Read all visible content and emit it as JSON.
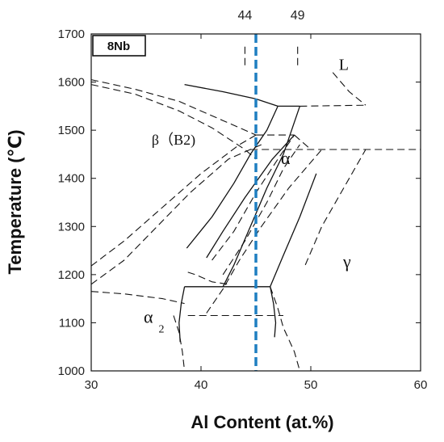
{
  "chart_data": {
    "type": "line",
    "title": "",
    "xlabel": "Al Content (at.%)",
    "ylabel": "Temperature (℃)",
    "xlim": [
      30,
      60
    ],
    "ylim": [
      1000,
      1700
    ],
    "xticks": [
      30,
      40,
      50,
      60
    ],
    "yticks": [
      1000,
      1100,
      1200,
      1300,
      1400,
      1500,
      1600,
      1700
    ],
    "top_ticks": [
      "44",
      "49"
    ],
    "sample_label": "8Nb",
    "marker_line": {
      "x": 45,
      "color": "#1f7fc1",
      "style": "dashed"
    },
    "phase_labels": [
      {
        "text": "L",
        "x": 53.0,
        "y": 1625
      },
      {
        "text": "β（B2)",
        "x": 37.5,
        "y": 1470
      },
      {
        "text": "α",
        "x": 47.7,
        "y": 1430
      },
      {
        "text": "γ",
        "x": 53.3,
        "y": 1215
      },
      {
        "text": "α",
        "x": 35.2,
        "y": 1100
      },
      {
        "text": "2",
        "x": 36.4,
        "y": 1080
      }
    ],
    "series": [
      {
        "style": "solid",
        "points": [
          [
            38.5,
            1595
          ],
          [
            42,
            1580
          ],
          [
            45,
            1565
          ],
          [
            47,
            1550
          ]
        ]
      },
      {
        "style": "solid",
        "points": [
          [
            47,
            1550
          ],
          [
            49,
            1550
          ]
        ]
      },
      {
        "style": "solid",
        "points": [
          [
            38.7,
            1255
          ],
          [
            41,
            1320
          ],
          [
            43,
            1390
          ],
          [
            44.5,
            1450
          ],
          [
            46,
            1500
          ],
          [
            47,
            1550
          ]
        ]
      },
      {
        "style": "solid",
        "points": [
          [
            42,
            1175
          ],
          [
            43,
            1220
          ],
          [
            44.5,
            1300
          ],
          [
            46,
            1380
          ],
          [
            47.5,
            1450
          ],
          [
            49,
            1550
          ]
        ]
      },
      {
        "style": "solid",
        "points": [
          [
            40.5,
            1235
          ],
          [
            42,
            1290
          ],
          [
            44,
            1360
          ],
          [
            46.5,
            1440
          ],
          [
            48.5,
            1490
          ]
        ]
      },
      {
        "style": "solid",
        "points": [
          [
            46.3,
            1175
          ],
          [
            47.5,
            1240
          ],
          [
            49,
            1320
          ],
          [
            50.5,
            1410
          ]
        ]
      },
      {
        "style": "solid",
        "points": [
          [
            38.5,
            1175
          ],
          [
            46.3,
            1175
          ]
        ]
      },
      {
        "style": "solid",
        "points": [
          [
            38.5,
            1175
          ],
          [
            38.2,
            1140
          ],
          [
            38,
            1100
          ],
          [
            38.1,
            1060
          ]
        ]
      },
      {
        "style": "solid",
        "points": [
          [
            46.3,
            1175
          ],
          [
            46.6,
            1140
          ],
          [
            46.8,
            1100
          ],
          [
            46.7,
            1070
          ]
        ]
      },
      {
        "style": "dashed",
        "points": [
          [
            30,
            1605
          ],
          [
            34,
            1585
          ],
          [
            38,
            1560
          ],
          [
            42,
            1520
          ],
          [
            45,
            1490
          ]
        ]
      },
      {
        "style": "dashed",
        "points": [
          [
            30,
            1595
          ],
          [
            34,
            1575
          ],
          [
            38,
            1540
          ],
          [
            41,
            1505
          ],
          [
            44,
            1460
          ],
          [
            45,
            1440
          ]
        ]
      },
      {
        "style": "dashed",
        "points": [
          [
            30,
            1218
          ],
          [
            33,
            1270
          ],
          [
            36.5,
            1340
          ],
          [
            40,
            1410
          ],
          [
            43.5,
            1470
          ],
          [
            45,
            1490
          ]
        ]
      },
      {
        "style": "dashed",
        "points": [
          [
            30,
            1180
          ],
          [
            33,
            1230
          ],
          [
            36,
            1300
          ],
          [
            39,
            1370
          ],
          [
            42.5,
            1440
          ],
          [
            45.5,
            1470
          ]
        ]
      },
      {
        "style": "dashed",
        "points": [
          [
            45,
            1490
          ],
          [
            48.5,
            1490
          ]
        ]
      },
      {
        "style": "dashed",
        "points": [
          [
            44.5,
            1460
          ],
          [
            60,
            1460
          ]
        ]
      },
      {
        "style": "dashed",
        "points": [
          [
            48.5,
            1490
          ],
          [
            50,
            1460
          ]
        ]
      },
      {
        "style": "dashed",
        "points": [
          [
            52,
            1620
          ],
          [
            53.5,
            1580
          ],
          [
            55,
            1552
          ]
        ]
      },
      {
        "style": "dashed",
        "points": [
          [
            49,
            1550
          ],
          [
            55,
            1552
          ]
        ]
      },
      {
        "style": "dashed",
        "points": [
          [
            41,
            1230
          ],
          [
            43,
            1290
          ],
          [
            45,
            1370
          ],
          [
            47,
            1440
          ],
          [
            48.5,
            1490
          ]
        ]
      },
      {
        "style": "dashed",
        "points": [
          [
            42,
            1200
          ],
          [
            44,
            1270
          ],
          [
            46,
            1350
          ],
          [
            47.5,
            1420
          ],
          [
            49,
            1470
          ]
        ]
      },
      {
        "style": "dashed",
        "points": [
          [
            40.5,
            1120
          ],
          [
            42,
            1170
          ],
          [
            43.5,
            1230
          ],
          [
            45.5,
            1300
          ],
          [
            48,
            1380
          ],
          [
            51,
            1460
          ]
        ]
      },
      {
        "style": "dashed",
        "points": [
          [
            49.5,
            1220
          ],
          [
            51,
            1300
          ],
          [
            53,
            1380
          ],
          [
            55,
            1460
          ]
        ]
      },
      {
        "style": "dashed",
        "points": [
          [
            38.8,
            1205
          ],
          [
            39.5,
            1200
          ],
          [
            41,
            1185
          ],
          [
            42.5,
            1180
          ]
        ]
      },
      {
        "style": "dashed",
        "points": [
          [
            38.8,
            1115
          ],
          [
            47.5,
            1115
          ]
        ]
      },
      {
        "style": "dashed",
        "points": [
          [
            30,
            1165
          ],
          [
            33,
            1160
          ],
          [
            36.5,
            1150
          ],
          [
            38.5,
            1140
          ]
        ]
      },
      {
        "style": "dashed",
        "points": [
          [
            37.5,
            1115
          ],
          [
            38,
            1080
          ],
          [
            38.3,
            1040
          ],
          [
            38.5,
            1000
          ]
        ]
      },
      {
        "style": "dashed",
        "points": [
          [
            46.3,
            1175
          ],
          [
            47,
            1130
          ],
          [
            47.5,
            1090
          ],
          [
            48.5,
            1040
          ],
          [
            49,
            1000
          ]
        ]
      },
      {
        "style": "dashed",
        "points": [
          [
            44,
            1635
          ],
          [
            44,
            1680
          ]
        ]
      },
      {
        "style": "dashed",
        "points": [
          [
            48.8,
            1635
          ],
          [
            48.8,
            1680
          ]
        ]
      }
    ]
  }
}
